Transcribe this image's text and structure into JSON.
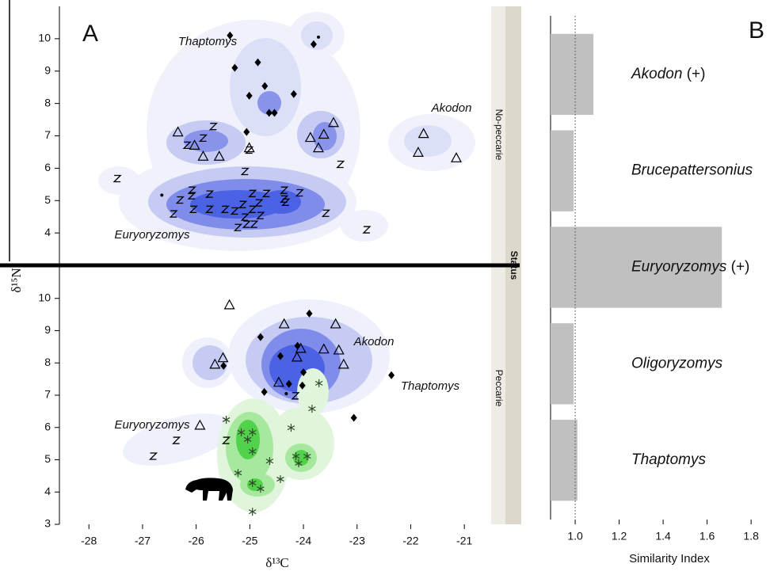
{
  "chart_data": [
    {
      "type": "scatter",
      "panel_label": "A",
      "xlabel": "δ¹³C",
      "ylabel": "δ¹⁵N",
      "xlim": [
        -28.55,
        -20.5
      ],
      "xticks": [
        -28,
        -27,
        -26,
        -25,
        -24,
        -23,
        -22,
        -21
      ],
      "strip_title": "Status",
      "facets": [
        {
          "title": "No-peccarie",
          "ylim": [
            3.05,
            11
          ],
          "yticks": [
            4,
            5,
            6,
            7,
            8,
            9,
            10
          ],
          "annotations": [
            "Thaptomys",
            "Akodon",
            "Euryoryzomys"
          ],
          "series": [
            {
              "marker": "diamond",
              "color": "#000000",
              "x": [
                -25.37,
                -23.81,
                -25.28,
                -24.85,
                -24.72,
                -25.01,
                -24.18,
                -24.64,
                -24.54,
                -25.06
              ],
              "y": [
                10.1,
                9.83,
                9.1,
                9.27,
                8.54,
                8.24,
                8.29,
                7.71,
                7.71,
                7.12
              ]
            },
            {
              "marker": "triangle",
              "color": "#000000",
              "x": [
                -26.34,
                -26.03,
                -25.87,
                -25.57,
                -25.01,
                -23.87,
                -23.62,
                -23.44,
                -23.72,
                -21.76,
                -21.86,
                -21.15
              ],
              "y": [
                7.12,
                6.71,
                6.37,
                6.37,
                6.63,
                6.95,
                7.05,
                7.41,
                6.63,
                7.07,
                6.49,
                6.32
              ]
            },
            {
              "marker": "z",
              "color": "#000000",
              "x": [
                -25.68,
                -25.87,
                -26.17,
                -25.01,
                -25.09,
                -23.31,
                -27.47,
                -26.08,
                -26.08,
                -25.75,
                -26.3,
                -26.42,
                -26.05,
                -25.75,
                -25.46,
                -25.13,
                -25.28,
                -25.09,
                -24.95,
                -24.83,
                -24.95,
                -24.69,
                -25.22,
                -25.06,
                -24.92,
                -24.8,
                -24.36,
                -24.33,
                -24.36,
                -24.07,
                -23.58,
                -22.82
              ],
              "y": [
                7.29,
                6.93,
                6.71,
                6.56,
                5.9,
                6.12,
                5.68,
                5.32,
                5.15,
                5.2,
                5.02,
                4.59,
                4.73,
                4.73,
                4.73,
                4.88,
                4.68,
                4.49,
                4.73,
                4.93,
                5.22,
                5.22,
                4.17,
                4.27,
                4.27,
                4.54,
                5.32,
                4.95,
                5.05,
                5.24,
                4.61,
                4.1
              ]
            },
            {
              "marker": "dot",
              "color": "#000000",
              "x": [
                -26.64,
                -23.72
              ],
              "y": [
                5.17,
                10.05
              ]
            }
          ]
        },
        {
          "title": "Peccarie",
          "ylim": [
            3,
            10.95
          ],
          "yticks": [
            3,
            4,
            5,
            6,
            7,
            8,
            9,
            10
          ],
          "annotations": [
            "Akodon",
            "Thaptomys",
            "Euryoryzomys"
          ],
          "series": [
            {
              "marker": "triangle",
              "color": "#000000",
              "x": [
                -25.38,
                -24.36,
                -23.4,
                -24.05,
                -23.62,
                -23.34,
                -24.12,
                -23.25,
                -25.5,
                -25.65,
                -25.93,
                -24.46
              ],
              "y": [
                9.8,
                9.21,
                9.21,
                8.45,
                8.43,
                8.4,
                8.18,
                7.96,
                8.16,
                7.96,
                6.07,
                7.4
              ]
            },
            {
              "marker": "diamond",
              "color": "#000000",
              "x": [
                -24.8,
                -23.89,
                -24.11,
                -24.43,
                -24.0,
                -24.27,
                -24.73,
                -24.02,
                -25.49,
                -22.36,
                -23.06
              ],
              "y": [
                8.8,
                9.53,
                8.53,
                8.21,
                7.71,
                7.35,
                7.1,
                7.3,
                7.91,
                7.62,
                6.3
              ]
            },
            {
              "marker": "z",
              "color": "#000000",
              "x": [
                -24.15,
                -26.37,
                -26.8,
                -25.44
              ],
              "y": [
                6.98,
                5.6,
                5.11,
                5.6
              ]
            },
            {
              "marker": "asterisk",
              "color": "#2e4a2a",
              "x": [
                -23.71,
                -23.84,
                -24.23,
                -25.44,
                -25.16,
                -24.95,
                -25.04,
                -24.95,
                -24.63,
                -24.14,
                -23.93,
                -24.09,
                -25.22,
                -24.95,
                -24.8,
                -24.43,
                -24.95
              ],
              "y": [
                7.37,
                6.58,
                5.99,
                6.24,
                5.85,
                5.85,
                5.63,
                5.26,
                4.96,
                5.11,
                5.11,
                4.89,
                4.59,
                4.28,
                4.1,
                4.4,
                3.39
              ]
            },
            {
              "marker": "dot",
              "color": "#000000",
              "x": [
                -24.32
              ],
              "y": [
                7.05
              ]
            }
          ]
        }
      ]
    },
    {
      "type": "bar",
      "orientation": "horizontal",
      "panel_label": "B",
      "xlabel": "Similarity Index",
      "categories": [
        "Akodon (+)",
        "Brucepattersonius",
        "Euryoryzomys (+)",
        "Oligoryzomys",
        "Thaptomys"
      ],
      "values": [
        1.083,
        0.993,
        1.667,
        0.993,
        1.01
      ],
      "color": "#c0c0c0",
      "xlim": [
        0.888,
        1.886
      ],
      "xticks": [
        {
          "value": 1,
          "label": "1.0"
        },
        1.2,
        1.4,
        1.6,
        1.8
      ],
      "reference_line": 1
    }
  ]
}
